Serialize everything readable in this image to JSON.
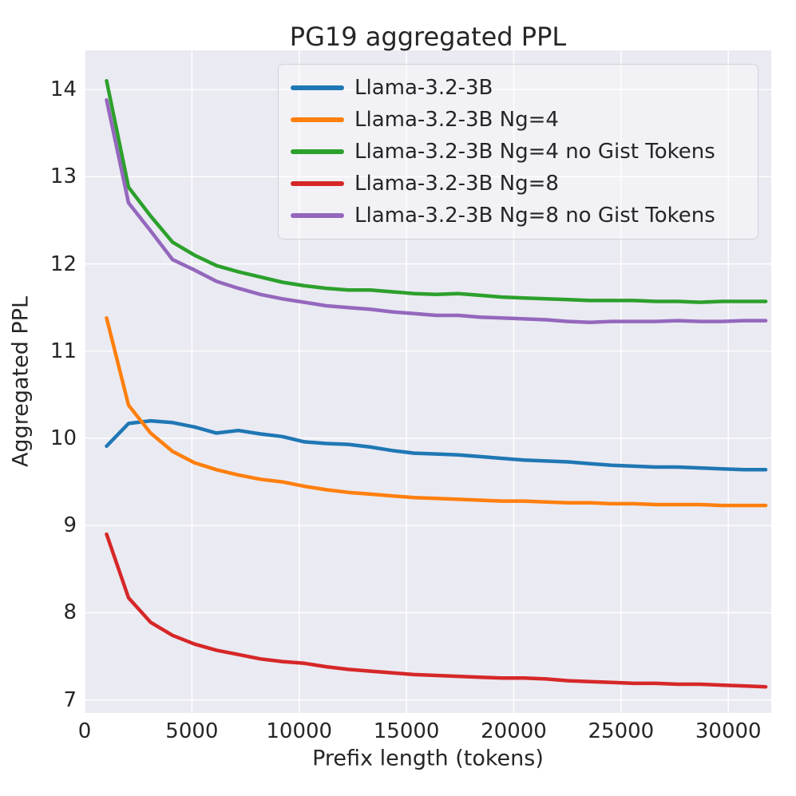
{
  "figure": {
    "background": "#ffffff",
    "plot_background": "#eaeaf2",
    "grid_color": "#ffffff",
    "text_color": "#262626",
    "legend_border_color": "#d2d2da"
  },
  "chart_data": {
    "type": "line",
    "title": "PG19 aggregated PPL",
    "xlabel": "Prefix length (tokens)",
    "ylabel": "Aggregated PPL",
    "grid": true,
    "legend_position": "upper right inside",
    "xlim": [
      0,
      32000
    ],
    "ylim": [
      6.85,
      14.45
    ],
    "xticks": {
      "values": [
        0,
        5000,
        10000,
        15000,
        20000,
        25000,
        30000
      ],
      "labels": [
        "0",
        "5000",
        "10000",
        "15000",
        "20000",
        "25000",
        "30000"
      ]
    },
    "yticks": {
      "values": [
        7,
        8,
        9,
        10,
        11,
        12,
        13,
        14
      ],
      "labels": [
        "7",
        "8",
        "9",
        "10",
        "11",
        "12",
        "13",
        "14"
      ]
    },
    "x": [
      1024,
      2048,
      3072,
      4096,
      5120,
      6144,
      7168,
      8192,
      9216,
      10240,
      11264,
      12288,
      13312,
      14336,
      15360,
      16384,
      17408,
      18432,
      19456,
      20480,
      21504,
      22528,
      23552,
      24576,
      25600,
      26624,
      27648,
      28672,
      29696,
      30720,
      31744
    ],
    "series": [
      {
        "name": "Llama-3.2-3B",
        "color": "#1f77b4",
        "values": [
          9.91,
          10.17,
          10.2,
          10.18,
          10.13,
          10.06,
          10.09,
          10.05,
          10.02,
          9.96,
          9.94,
          9.93,
          9.9,
          9.86,
          9.83,
          9.82,
          9.81,
          9.79,
          9.77,
          9.75,
          9.74,
          9.73,
          9.71,
          9.69,
          9.68,
          9.67,
          9.67,
          9.66,
          9.65,
          9.64,
          9.64
        ]
      },
      {
        "name": "Llama-3.2-3B Ng=4",
        "color": "#ff7f0e",
        "values": [
          11.38,
          10.38,
          10.06,
          9.85,
          9.72,
          9.64,
          9.58,
          9.53,
          9.5,
          9.45,
          9.41,
          9.38,
          9.36,
          9.34,
          9.32,
          9.31,
          9.3,
          9.29,
          9.28,
          9.28,
          9.27,
          9.26,
          9.26,
          9.25,
          9.25,
          9.24,
          9.24,
          9.24,
          9.23,
          9.23,
          9.23
        ]
      },
      {
        "name": "Llama-3.2-3B Ng=4 no Gist Tokens",
        "color": "#2ca02c",
        "values": [
          14.1,
          12.88,
          12.55,
          12.25,
          12.1,
          11.98,
          11.91,
          11.85,
          11.79,
          11.75,
          11.72,
          11.7,
          11.7,
          11.68,
          11.66,
          11.65,
          11.66,
          11.64,
          11.62,
          11.61,
          11.6,
          11.59,
          11.58,
          11.58,
          11.58,
          11.57,
          11.57,
          11.56,
          11.57,
          11.57,
          11.57
        ]
      },
      {
        "name": "Llama-3.2-3B Ng=8",
        "color": "#d62728",
        "values": [
          8.9,
          8.17,
          7.89,
          7.74,
          7.64,
          7.57,
          7.52,
          7.47,
          7.44,
          7.42,
          7.38,
          7.35,
          7.33,
          7.31,
          7.29,
          7.28,
          7.27,
          7.26,
          7.25,
          7.25,
          7.24,
          7.22,
          7.21,
          7.2,
          7.19,
          7.19,
          7.18,
          7.18,
          7.17,
          7.16,
          7.15
        ]
      },
      {
        "name": "Llama-3.2-3B Ng=8 no Gist Tokens",
        "color": "#9467bd",
        "values": [
          13.88,
          12.7,
          12.38,
          12.05,
          11.93,
          11.8,
          11.72,
          11.65,
          11.6,
          11.56,
          11.52,
          11.5,
          11.48,
          11.45,
          11.43,
          11.41,
          11.41,
          11.39,
          11.38,
          11.37,
          11.36,
          11.34,
          11.33,
          11.34,
          11.34,
          11.34,
          11.35,
          11.34,
          11.34,
          11.35,
          11.35
        ]
      }
    ]
  }
}
